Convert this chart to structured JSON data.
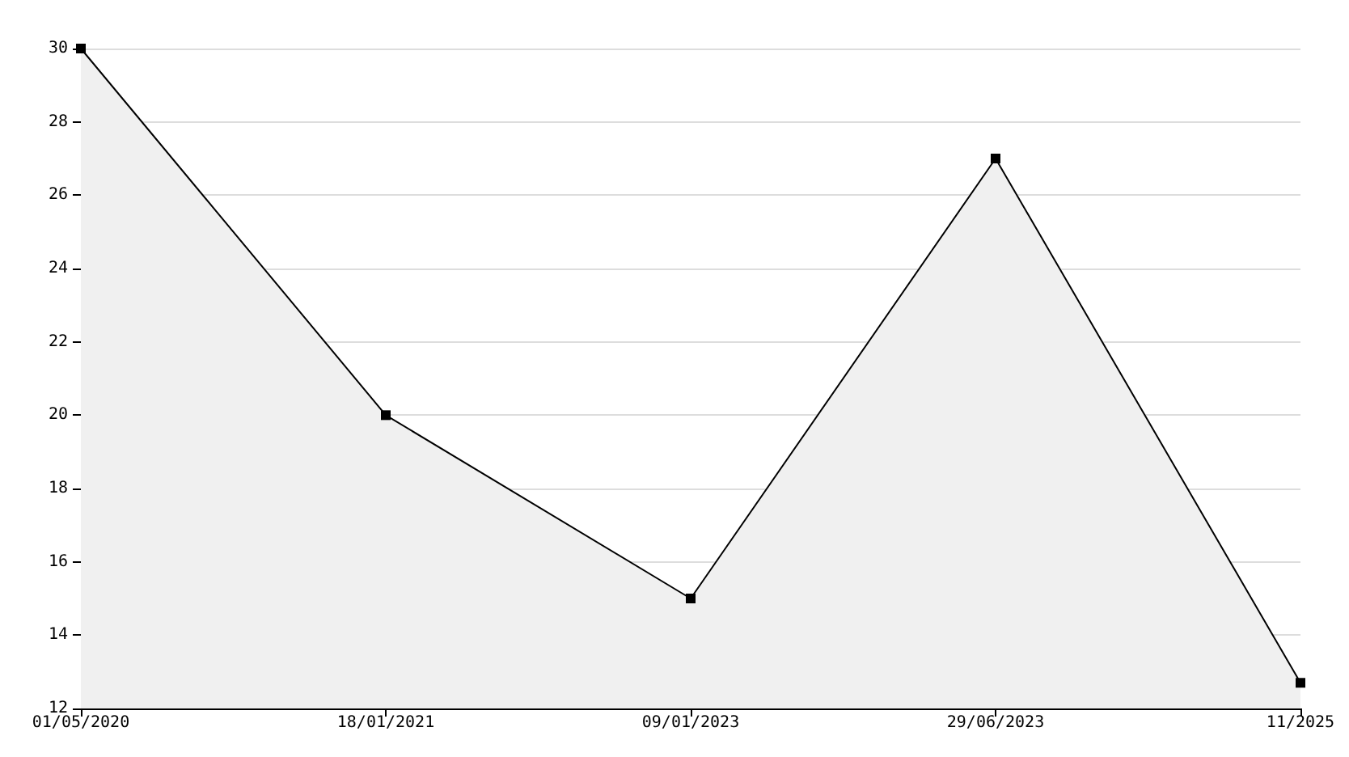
{
  "chart_data": {
    "type": "area",
    "categories": [
      "01/05/2020",
      "18/01/2021",
      "09/01/2023",
      "29/06/2023",
      "11/2025"
    ],
    "series": [
      {
        "color": "#000000",
        "values": [
          30,
          20,
          15,
          27,
          12.7
        ]
      }
    ],
    "ylim": [
      12,
      30
    ],
    "yticks": [
      12,
      14,
      16,
      18,
      20,
      22,
      24,
      26,
      28,
      30
    ],
    "grid": "y",
    "marker": "square",
    "line_style": "solid"
  }
}
